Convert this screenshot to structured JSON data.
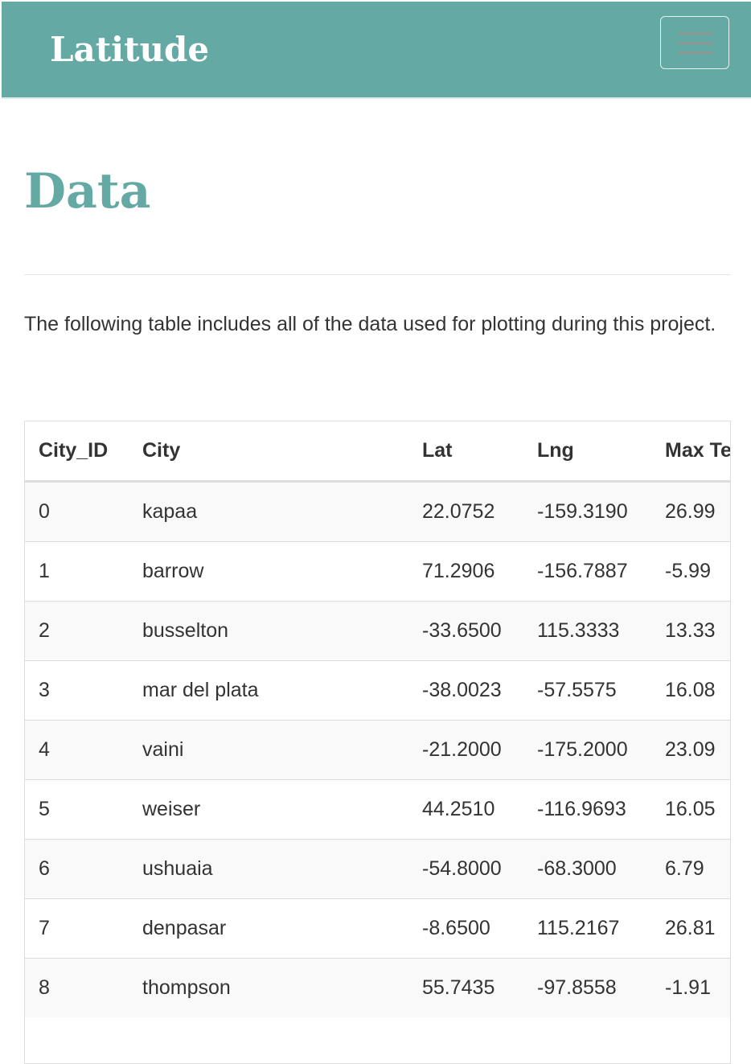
{
  "header": {
    "brand": "Latitude"
  },
  "page": {
    "heading": "Data",
    "intro": "The following table includes all of the data used for plotting during this project."
  },
  "table": {
    "columns": [
      "City_ID",
      "City",
      "Lat",
      "Lng",
      "Max Temp"
    ],
    "rows": [
      [
        "0",
        "kapaa",
        "22.0752",
        "-159.3190",
        "26.99"
      ],
      [
        "1",
        "barrow",
        "71.2906",
        "-156.7887",
        "-5.99"
      ],
      [
        "2",
        "busselton",
        "-33.6500",
        "115.3333",
        "13.33"
      ],
      [
        "3",
        "mar del plata",
        "-38.0023",
        "-57.5575",
        "16.08"
      ],
      [
        "4",
        "vaini",
        "-21.2000",
        "-175.2000",
        "23.09"
      ],
      [
        "5",
        "weiser",
        "44.2510",
        "-116.9693",
        "16.05"
      ],
      [
        "6",
        "ushuaia",
        "-54.8000",
        "-68.3000",
        "6.79"
      ],
      [
        "7",
        "denpasar",
        "-8.6500",
        "115.2167",
        "26.81"
      ],
      [
        "8",
        "thompson",
        "55.7435",
        "-97.8558",
        "-1.91"
      ]
    ]
  }
}
